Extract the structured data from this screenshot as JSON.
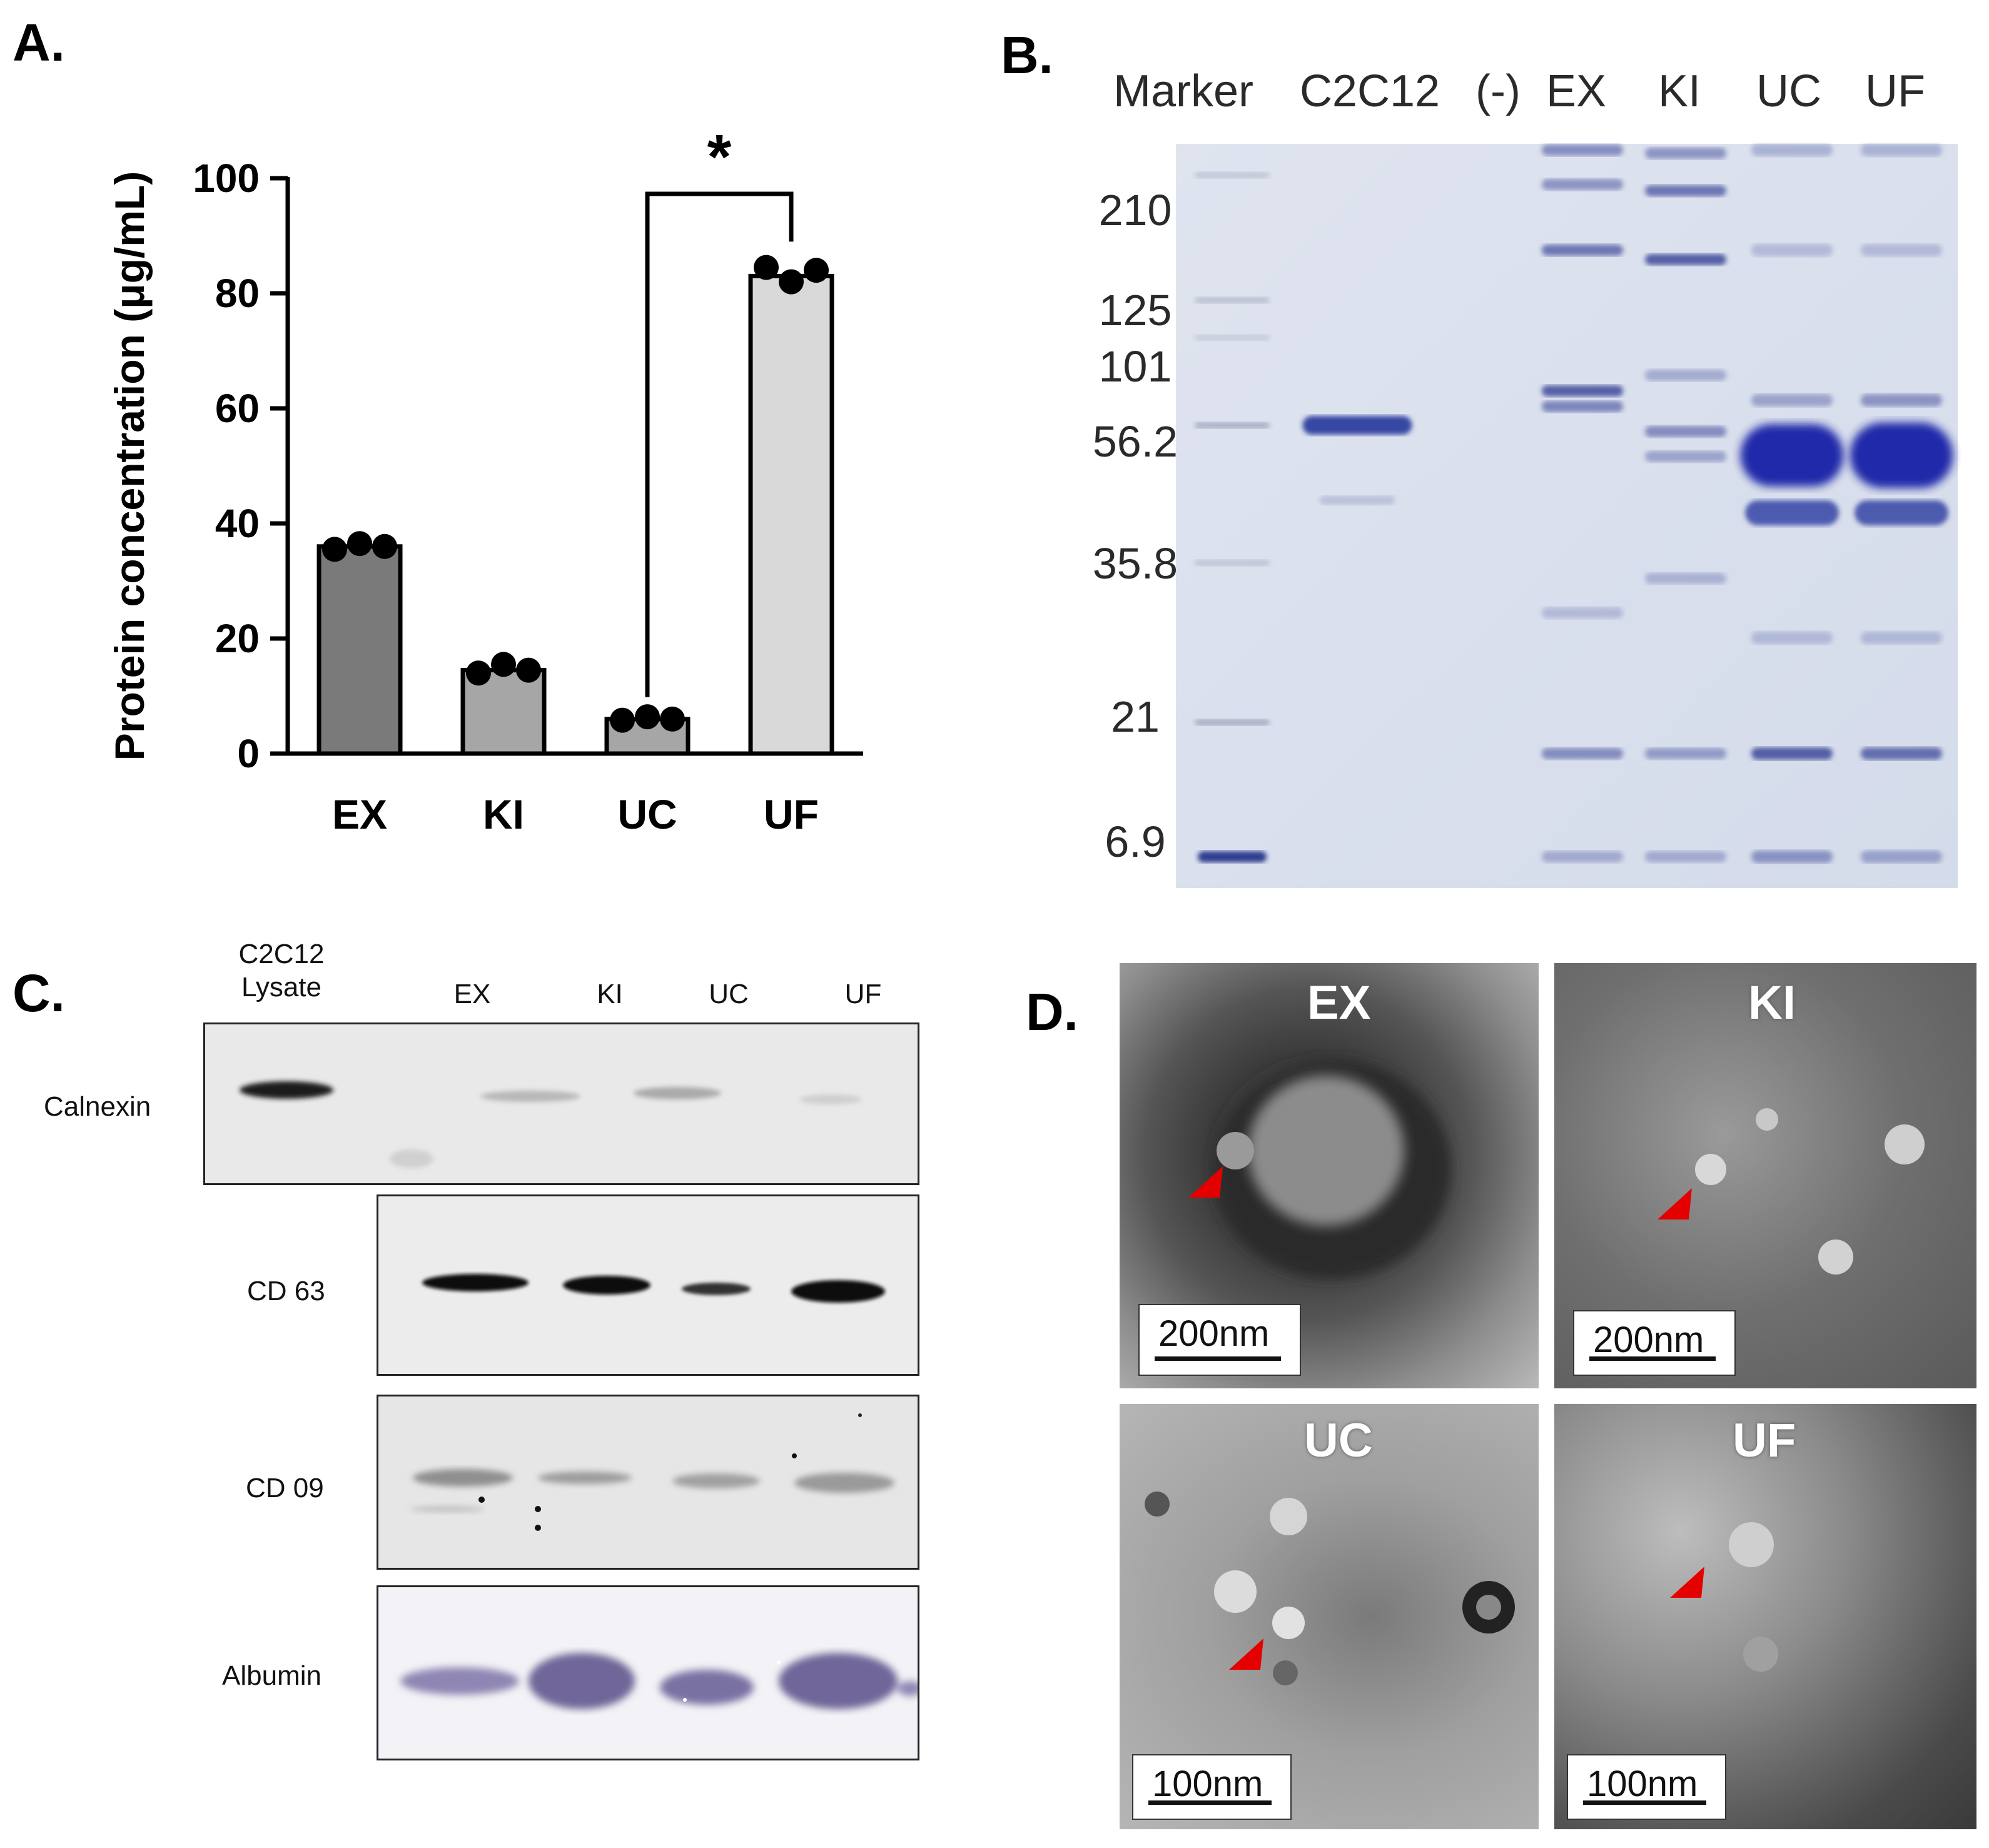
{
  "panels": {
    "a": "A.",
    "b": "B.",
    "c": "C.",
    "d": "D."
  },
  "chart_data": {
    "type": "bar",
    "ylabel": "Protein concentration (μg/mL)",
    "xlabel": "",
    "categories": [
      "EX",
      "KI",
      "UC",
      "UF"
    ],
    "values": [
      36,
      14.5,
      6,
      83
    ],
    "points": [
      [
        35.5,
        36.5,
        36
      ],
      [
        14,
        15.5,
        14.5
      ],
      [
        5.8,
        6.4,
        6
      ],
      [
        84.5,
        82,
        84
      ]
    ],
    "ylim": [
      0,
      100
    ],
    "yticks": [
      "0",
      "20",
      "40",
      "60",
      "80",
      "100"
    ],
    "significance": {
      "from": "UC",
      "to": "UF",
      "label": "*"
    },
    "bar_colors": [
      "#7a7a7a",
      "#a6a6a6",
      "#a6a6a6",
      "#d9d9d9"
    ]
  },
  "gel": {
    "lanes": [
      "Marker",
      "C2C12",
      "(-)",
      "EX",
      "KI",
      "UC",
      "UF"
    ],
    "marker_sizes": [
      "210",
      "125",
      "101",
      "56.2",
      "35.8",
      "21",
      "6.9"
    ]
  },
  "blot": {
    "lanes": [
      "C2C12 Lysate",
      "EX",
      "KI",
      "UC",
      "UF"
    ],
    "rows": [
      "Calnexin",
      "CD 63",
      "CD 09",
      "Albumin"
    ]
  },
  "tem": {
    "images": [
      {
        "label": "EX",
        "scale": "200nm"
      },
      {
        "label": "KI",
        "scale": "200nm"
      },
      {
        "label": "UC",
        "scale": "100nm"
      },
      {
        "label": "UF",
        "scale": "100nm"
      }
    ]
  }
}
